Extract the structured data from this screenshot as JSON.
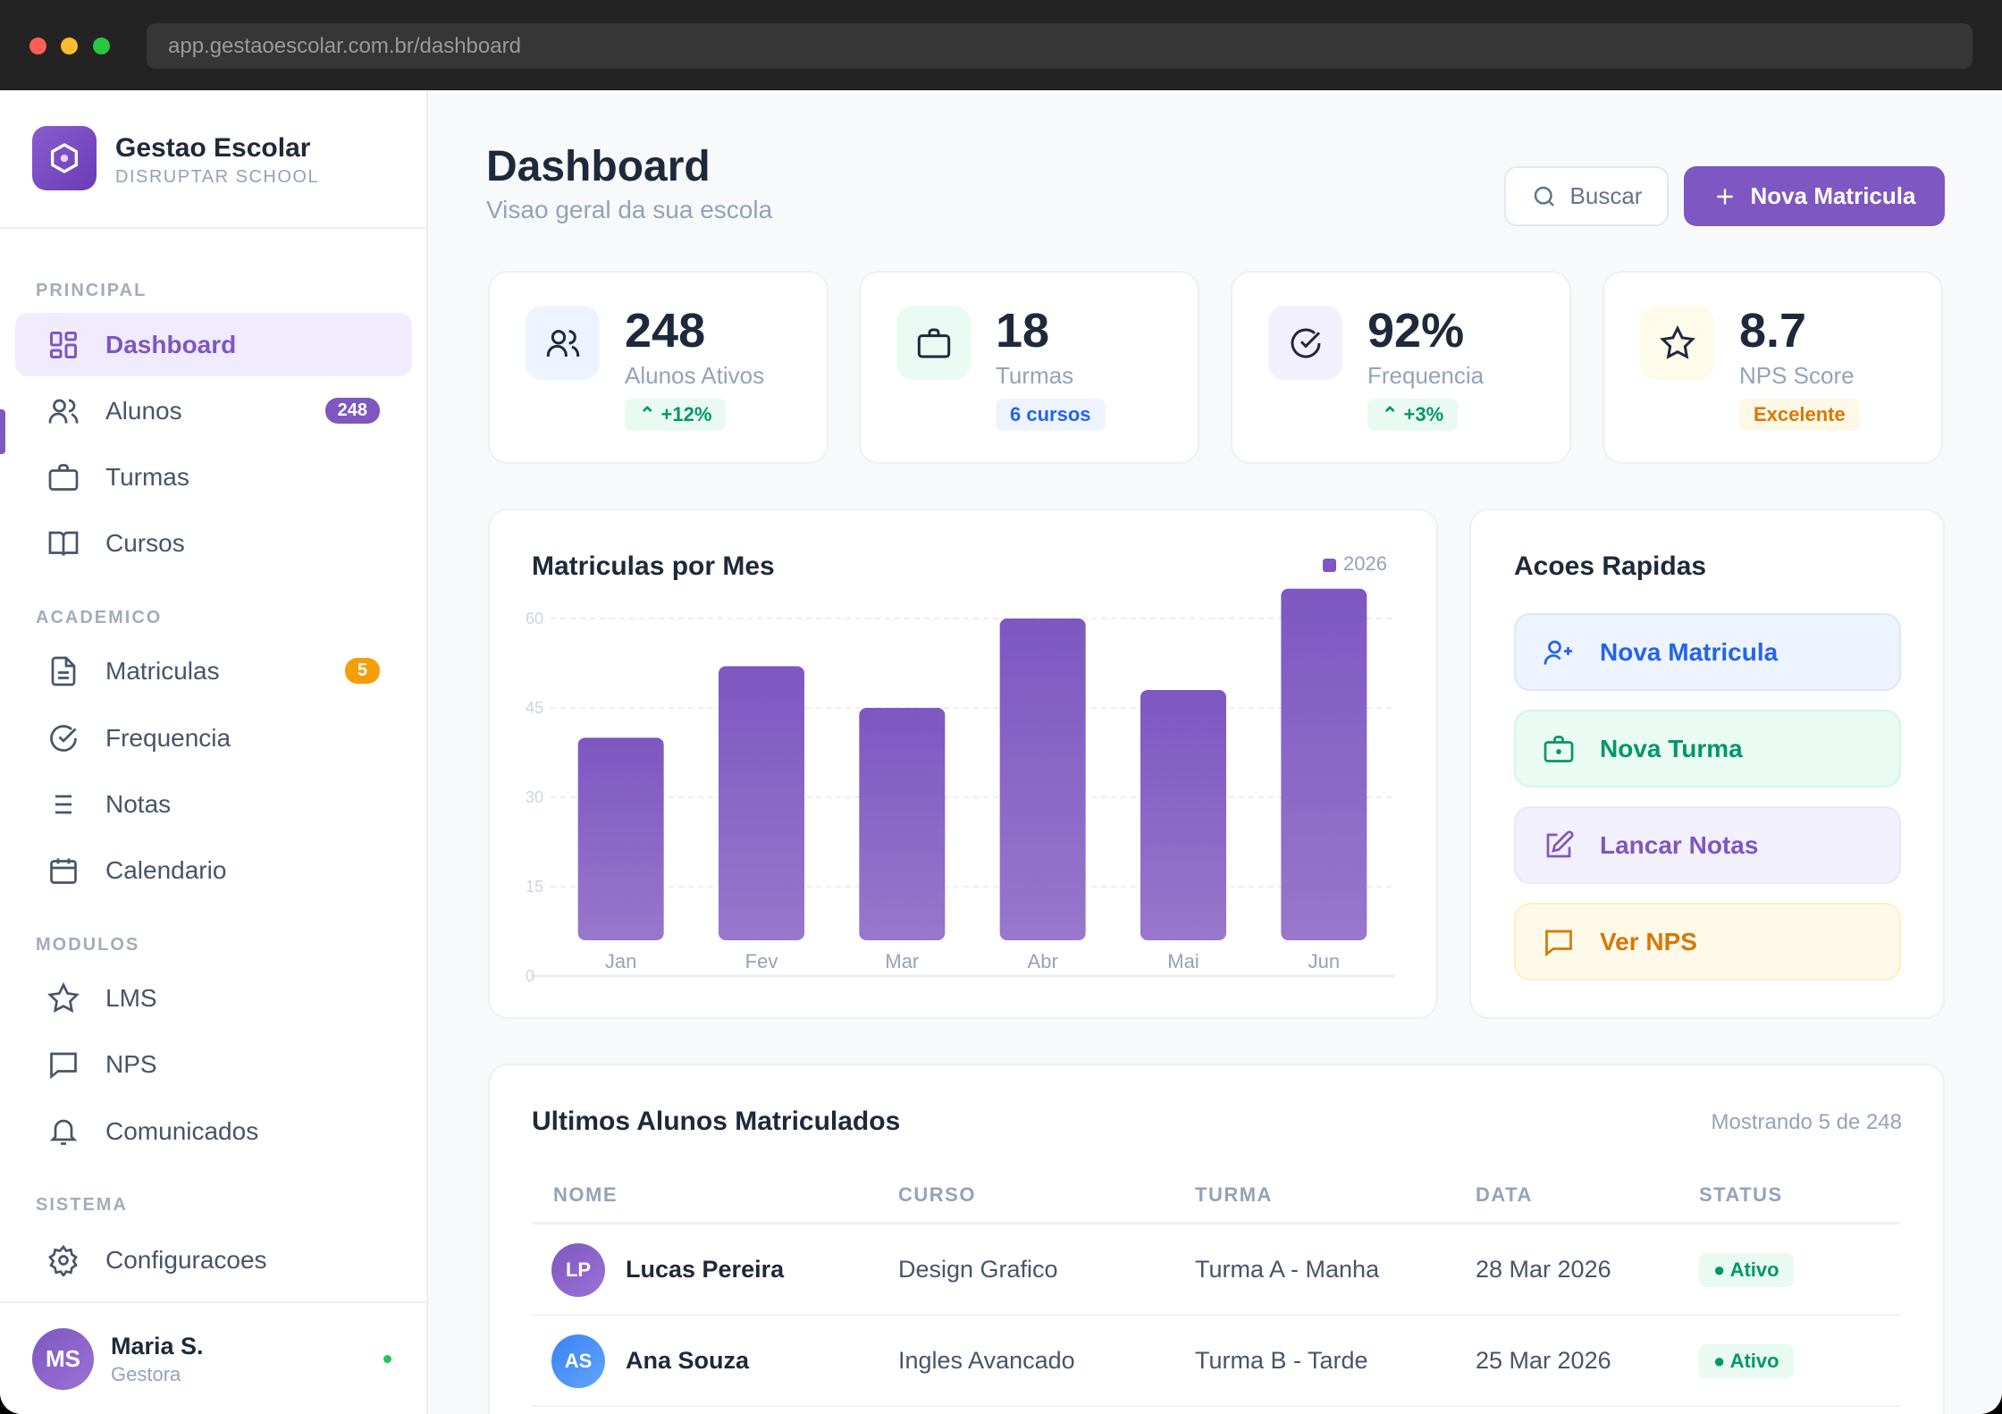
{
  "browser": {
    "url": "app.gestaoescolar.com.br/dashboard"
  },
  "brand": {
    "name": "Gestao Escolar",
    "subtitle": "DISRUPTAR SCHOOL"
  },
  "sidebar": {
    "sections": [
      "PRINCIPAL",
      "ACADEMICO",
      "MODULOS",
      "SISTEMA"
    ],
    "items": [
      {
        "label": "Dashboard",
        "icon": "grid-icon",
        "active": true
      },
      {
        "label": "Alunos",
        "icon": "users-icon",
        "badge": "248"
      },
      {
        "label": "Turmas",
        "icon": "briefcase-icon"
      },
      {
        "label": "Cursos",
        "icon": "book-icon"
      },
      {
        "label": "Matriculas",
        "icon": "file-icon",
        "badge": "5"
      },
      {
        "label": "Frequencia",
        "icon": "check-circle-icon"
      },
      {
        "label": "Notas",
        "icon": "list-icon"
      },
      {
        "label": "Calendario",
        "icon": "calendar-icon"
      },
      {
        "label": "LMS",
        "icon": "star-icon"
      },
      {
        "label": "NPS",
        "icon": "message-icon"
      },
      {
        "label": "Comunicados",
        "icon": "bell-icon"
      },
      {
        "label": "Configuracoes",
        "icon": "gear-icon"
      }
    ],
    "user": {
      "initials": "MS",
      "name": "Maria S.",
      "role": "Gestora",
      "online": true
    }
  },
  "header": {
    "title": "Dashboard",
    "subtitle": "Visao geral da sua escola",
    "search_label": "Buscar",
    "primary_label": "Nova Matricula"
  },
  "stats": [
    {
      "value": "248",
      "label": "Alunos Ativos",
      "pill": "+12%",
      "icon": "users-icon"
    },
    {
      "value": "18",
      "label": "Turmas",
      "pill": "6 cursos",
      "icon": "briefcase-icon"
    },
    {
      "value": "92%",
      "label": "Frequencia",
      "pill": "+3%",
      "icon": "check-circle-icon"
    },
    {
      "value": "8.7",
      "label": "NPS Score",
      "pill": "Excelente",
      "icon": "star-icon"
    }
  ],
  "colors": {
    "accent": "#7e57c2",
    "green": "#059669",
    "blue": "#2563eb",
    "amber": "#d97706"
  },
  "chart_data": {
    "type": "bar",
    "title": "Matriculas por Mes",
    "categories": [
      "Jan",
      "Fev",
      "Mar",
      "Abr",
      "Mai",
      "Jun"
    ],
    "series": [
      {
        "name": "2026",
        "values": [
          40,
          52,
          45,
          60,
          48,
          65
        ]
      }
    ],
    "yticks": [
      "0",
      "15",
      "30",
      "45",
      "60"
    ],
    "ylim": [
      0,
      60
    ],
    "grid": true,
    "legend": "top-right"
  },
  "quick_actions": {
    "title": "Acoes Rapidas",
    "items": [
      {
        "label": "Nova Matricula",
        "icon": "user-plus-icon"
      },
      {
        "label": "Nova Turma",
        "icon": "briefcase-icon"
      },
      {
        "label": "Lancar Notas",
        "icon": "edit-icon"
      },
      {
        "label": "Ver NPS",
        "icon": "message-icon"
      }
    ]
  },
  "table": {
    "title": "Ultimos Alunos Matriculados",
    "count_text": "Mostrando 5 de 248",
    "columns": [
      "NOME",
      "CURSO",
      "TURMA",
      "DATA",
      "STATUS"
    ],
    "rows": [
      {
        "initials": "LP",
        "name": "Lucas Pereira",
        "curso": "Design Grafico",
        "turma": "Turma A - Manha",
        "data": "28 Mar 2026",
        "status": "Ativo"
      },
      {
        "initials": "AS",
        "name": "Ana Souza",
        "curso": "Ingles Avancado",
        "turma": "Turma B - Tarde",
        "data": "25 Mar 2026",
        "status": "Ativo"
      }
    ]
  }
}
